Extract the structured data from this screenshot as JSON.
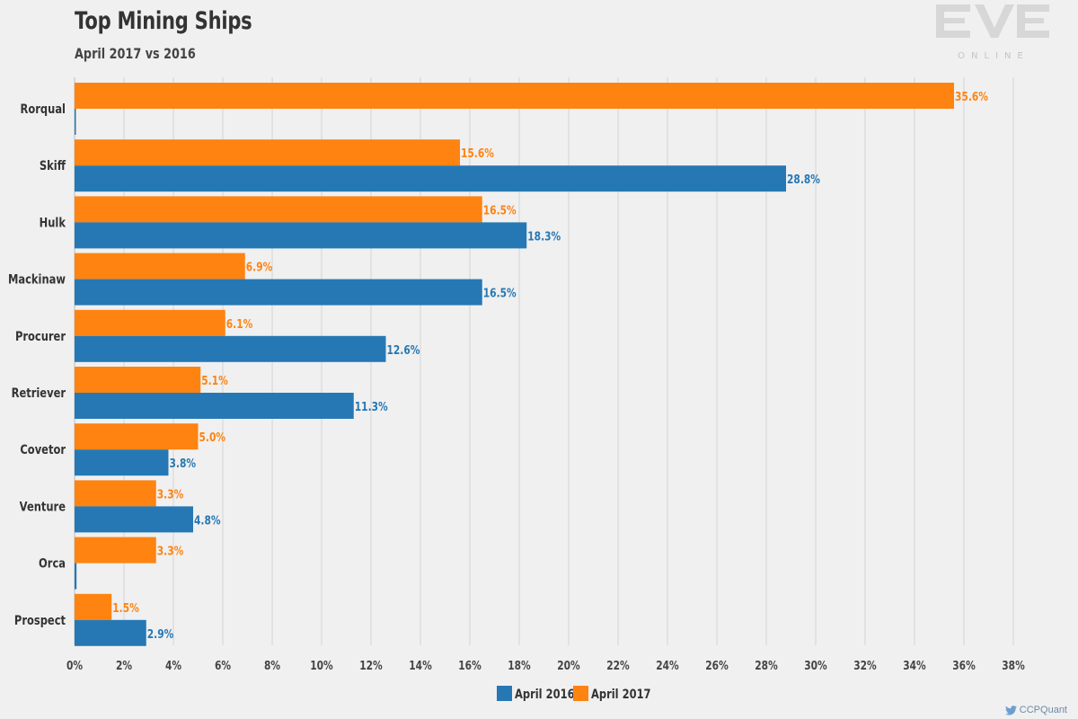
{
  "header": {
    "title": "Top Mining Ships",
    "subtitle": "April 2017 vs 2016"
  },
  "logo": {
    "text": "EVE",
    "subtext": "ONLINE"
  },
  "credit": {
    "text": "CCPQuant",
    "icon": "twitter-bird-icon"
  },
  "colors": {
    "april_2016": "#2678b4",
    "april_2017": "#fe8311",
    "grid": "#d4d4d4",
    "background": "#f0f0f0"
  },
  "chart_data": {
    "type": "bar",
    "orientation": "horizontal",
    "title": "Top Mining Ships",
    "subtitle": "April 2017 vs 2016",
    "categories": [
      "Rorqual",
      "Skiff",
      "Hulk",
      "Mackinaw",
      "Procurer",
      "Retriever",
      "Covetor",
      "Venture",
      "Orca",
      "Prospect"
    ],
    "series": [
      {
        "name": "April 2017",
        "color": "#fe8311",
        "values": [
          35.6,
          15.6,
          16.5,
          6.9,
          6.1,
          5.1,
          5.0,
          3.3,
          3.3,
          1.5
        ],
        "labels": [
          "35.6%",
          "15.6%",
          "16.5%",
          "6.9%",
          "6.1%",
          "5.1%",
          "5.0%",
          "3.3%",
          "3.3%",
          "1.5%"
        ]
      },
      {
        "name": "April 2016",
        "color": "#2678b4",
        "values": [
          0.05,
          28.8,
          18.3,
          16.5,
          12.6,
          11.3,
          3.8,
          4.8,
          0.08,
          2.9
        ],
        "labels": [
          "",
          "28.8%",
          "18.3%",
          "16.5%",
          "12.6%",
          "11.3%",
          "3.8%",
          "4.8%",
          "",
          "2.9%"
        ]
      }
    ],
    "xlim": [
      0,
      38
    ],
    "xticks": [
      "0%",
      "2%",
      "4%",
      "6%",
      "8%",
      "10%",
      "12%",
      "14%",
      "16%",
      "18%",
      "20%",
      "22%",
      "24%",
      "26%",
      "28%",
      "30%",
      "32%",
      "34%",
      "36%",
      "38%"
    ],
    "xtick_step": 2,
    "grid": "vertical",
    "legend": {
      "placement": "bottom-center",
      "order": [
        "April 2016",
        "April 2017"
      ]
    }
  }
}
